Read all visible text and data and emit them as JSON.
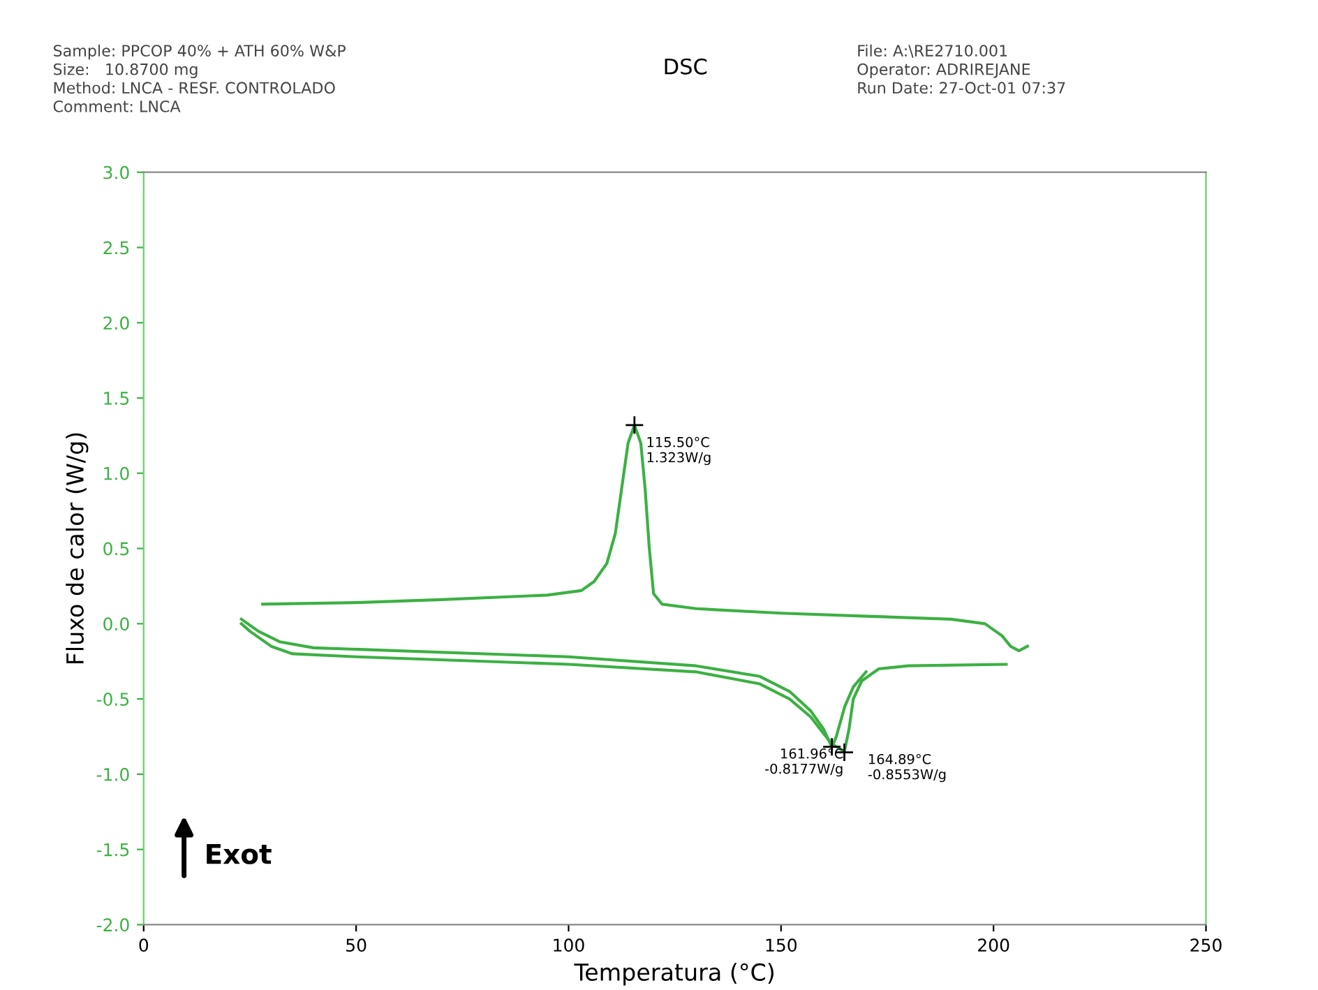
{
  "chart_data": {
    "type": "line",
    "title": "DSC",
    "xlabel": "Temperatura (°C)",
    "ylabel": "Fluxo de calor (W/g)",
    "xlim": [
      0,
      250
    ],
    "xticks": [
      0,
      50,
      100,
      150,
      200,
      250
    ],
    "ylim": [
      -2.0,
      3.0
    ],
    "yticks": [
      {
        "value": -2,
        "label": "-2.0"
      },
      {
        "value": -1.5,
        "label": "-1.5"
      },
      {
        "value": -1,
        "label": "-1.0"
      },
      {
        "value": -0.5,
        "label": "-0.5"
      },
      {
        "value": 0,
        "label": "0.0"
      },
      {
        "value": 0.5,
        "label": "0.5"
      },
      {
        "value": 1,
        "label": "1.0"
      },
      {
        "value": 1.5,
        "label": "1.5"
      },
      {
        "value": 2,
        "label": "2.0"
      },
      {
        "value": 2.5,
        "label": "2.5"
      },
      {
        "value": 3,
        "label": "3.0"
      }
    ],
    "grid": false,
    "marker": "none",
    "line_style": "solid",
    "series": [
      {
        "color": "#3cb043",
        "x": [
          208,
          206,
          204,
          202,
          198,
          190,
          170,
          150,
          130,
          122,
          120,
          119,
          118,
          117,
          115.5,
          114,
          112.5,
          111,
          109,
          106,
          103,
          95,
          70,
          50,
          28
        ],
        "values": [
          -0.15,
          -0.18,
          -0.15,
          -0.08,
          0.0,
          0.03,
          0.05,
          0.07,
          0.1,
          0.13,
          0.2,
          0.5,
          0.9,
          1.2,
          1.32,
          1.2,
          0.9,
          0.6,
          0.4,
          0.28,
          0.22,
          0.19,
          0.16,
          0.14,
          0.13
        ]
      },
      {
        "color": "#3cb043",
        "x": [
          23,
          25,
          30,
          35,
          50,
          100,
          130,
          145,
          152,
          157,
          160,
          162,
          164.9,
          166,
          167,
          169,
          173,
          180,
          203
        ],
        "values": [
          0.0,
          -0.05,
          -0.15,
          -0.2,
          -0.22,
          -0.27,
          -0.32,
          -0.4,
          -0.5,
          -0.62,
          -0.73,
          -0.8,
          -0.85,
          -0.7,
          -0.5,
          -0.38,
          -0.3,
          -0.28,
          -0.27
        ]
      },
      {
        "color": "#3cb043",
        "x": [
          23,
          27,
          32,
          40,
          100,
          130,
          145,
          152,
          157,
          160,
          161.96,
          163,
          165,
          167,
          170
        ],
        "values": [
          0.03,
          -0.05,
          -0.12,
          -0.16,
          -0.22,
          -0.28,
          -0.35,
          -0.45,
          -0.58,
          -0.7,
          -0.82,
          -0.75,
          -0.55,
          -0.42,
          -0.32
        ]
      }
    ],
    "annotations": [
      {
        "text": "115.50°C\n1.323W/g",
        "x": 115.5,
        "y": 1.32
      },
      {
        "text": "161.96°C\n-0.8177W/g",
        "x": 161.96,
        "y": -0.818
      },
      {
        "text": "164.89°C\n-0.8553W/g",
        "x": 164.9,
        "y": -0.855
      },
      "Sample: PPCOP 40% + ATH 60% W&P\nSize:   10.8700 mg\nMethod: LNCA - RESF. CONTROLADO\nComment: LNCA",
      "File: A:\\RE2710.001\nOperator: ADRIREJANE\nRun Date: 27-Oct-01 07:37",
      "Exot"
    ]
  }
}
